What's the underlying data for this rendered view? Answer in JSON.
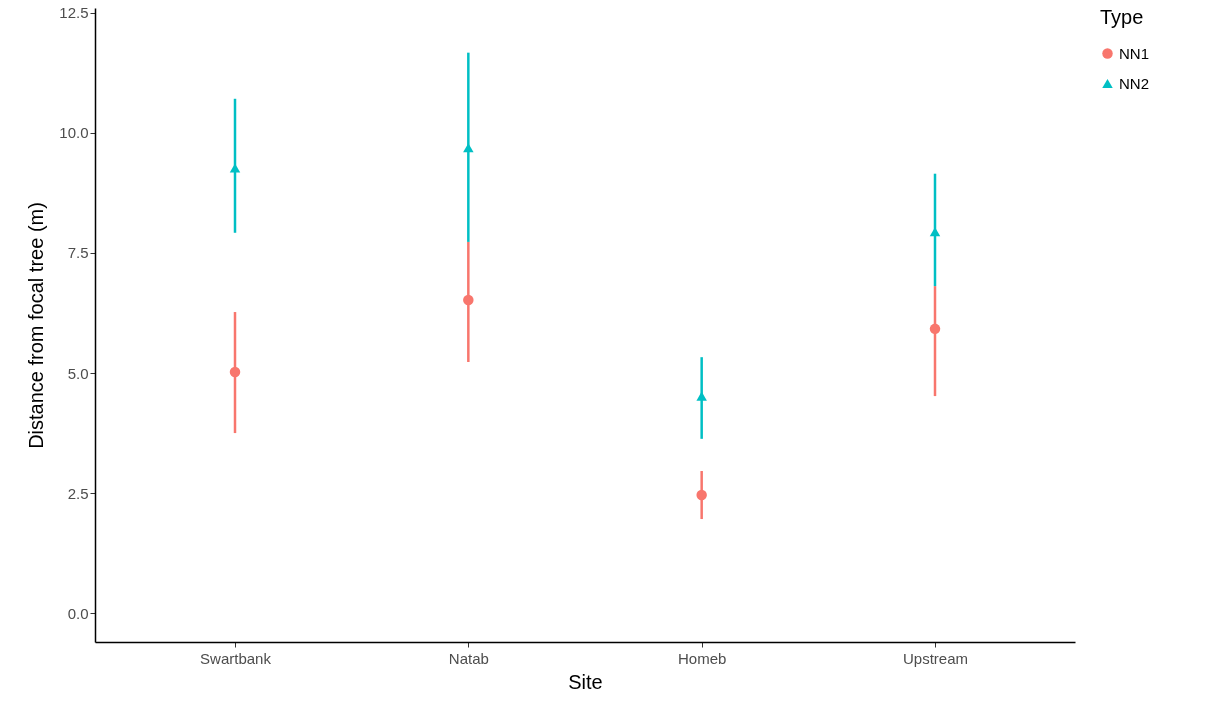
{
  "chart_data": {
    "type": "scatter",
    "xlabel": "Site",
    "ylabel": "Distance from focal tree (m)",
    "legend_title": "Type",
    "legend": "right",
    "grid": false,
    "categories": [
      "Swartbank",
      "Natab",
      "Homeb",
      "Upstream"
    ],
    "ylim": [
      -0.6,
      12.6
    ],
    "yticks": [
      {
        "value": 0,
        "label": "0.0"
      },
      2.5,
      {
        "value": 5,
        "label": "5.0"
      },
      7.5,
      {
        "value": 10,
        "label": "10.0"
      },
      12.5
    ],
    "series": [
      {
        "name": "NN1",
        "color": "#f8766d",
        "marker": "circle",
        "values": [
          5.02,
          6.52,
          2.46,
          5.92
        ],
        "errors": [
          [
            3.75,
            6.27
          ],
          [
            5.23,
            7.73
          ],
          [
            1.96,
            2.96
          ],
          [
            4.52,
            6.81
          ]
        ]
      },
      {
        "name": "NN2",
        "color": "#00bfc4",
        "marker": "triangle",
        "values": [
          9.27,
          9.69,
          4.52,
          7.94
        ],
        "errors": [
          [
            7.92,
            10.71
          ],
          [
            7.73,
            11.67
          ],
          [
            3.63,
            5.33
          ],
          [
            6.81,
            9.15
          ]
        ]
      }
    ]
  }
}
